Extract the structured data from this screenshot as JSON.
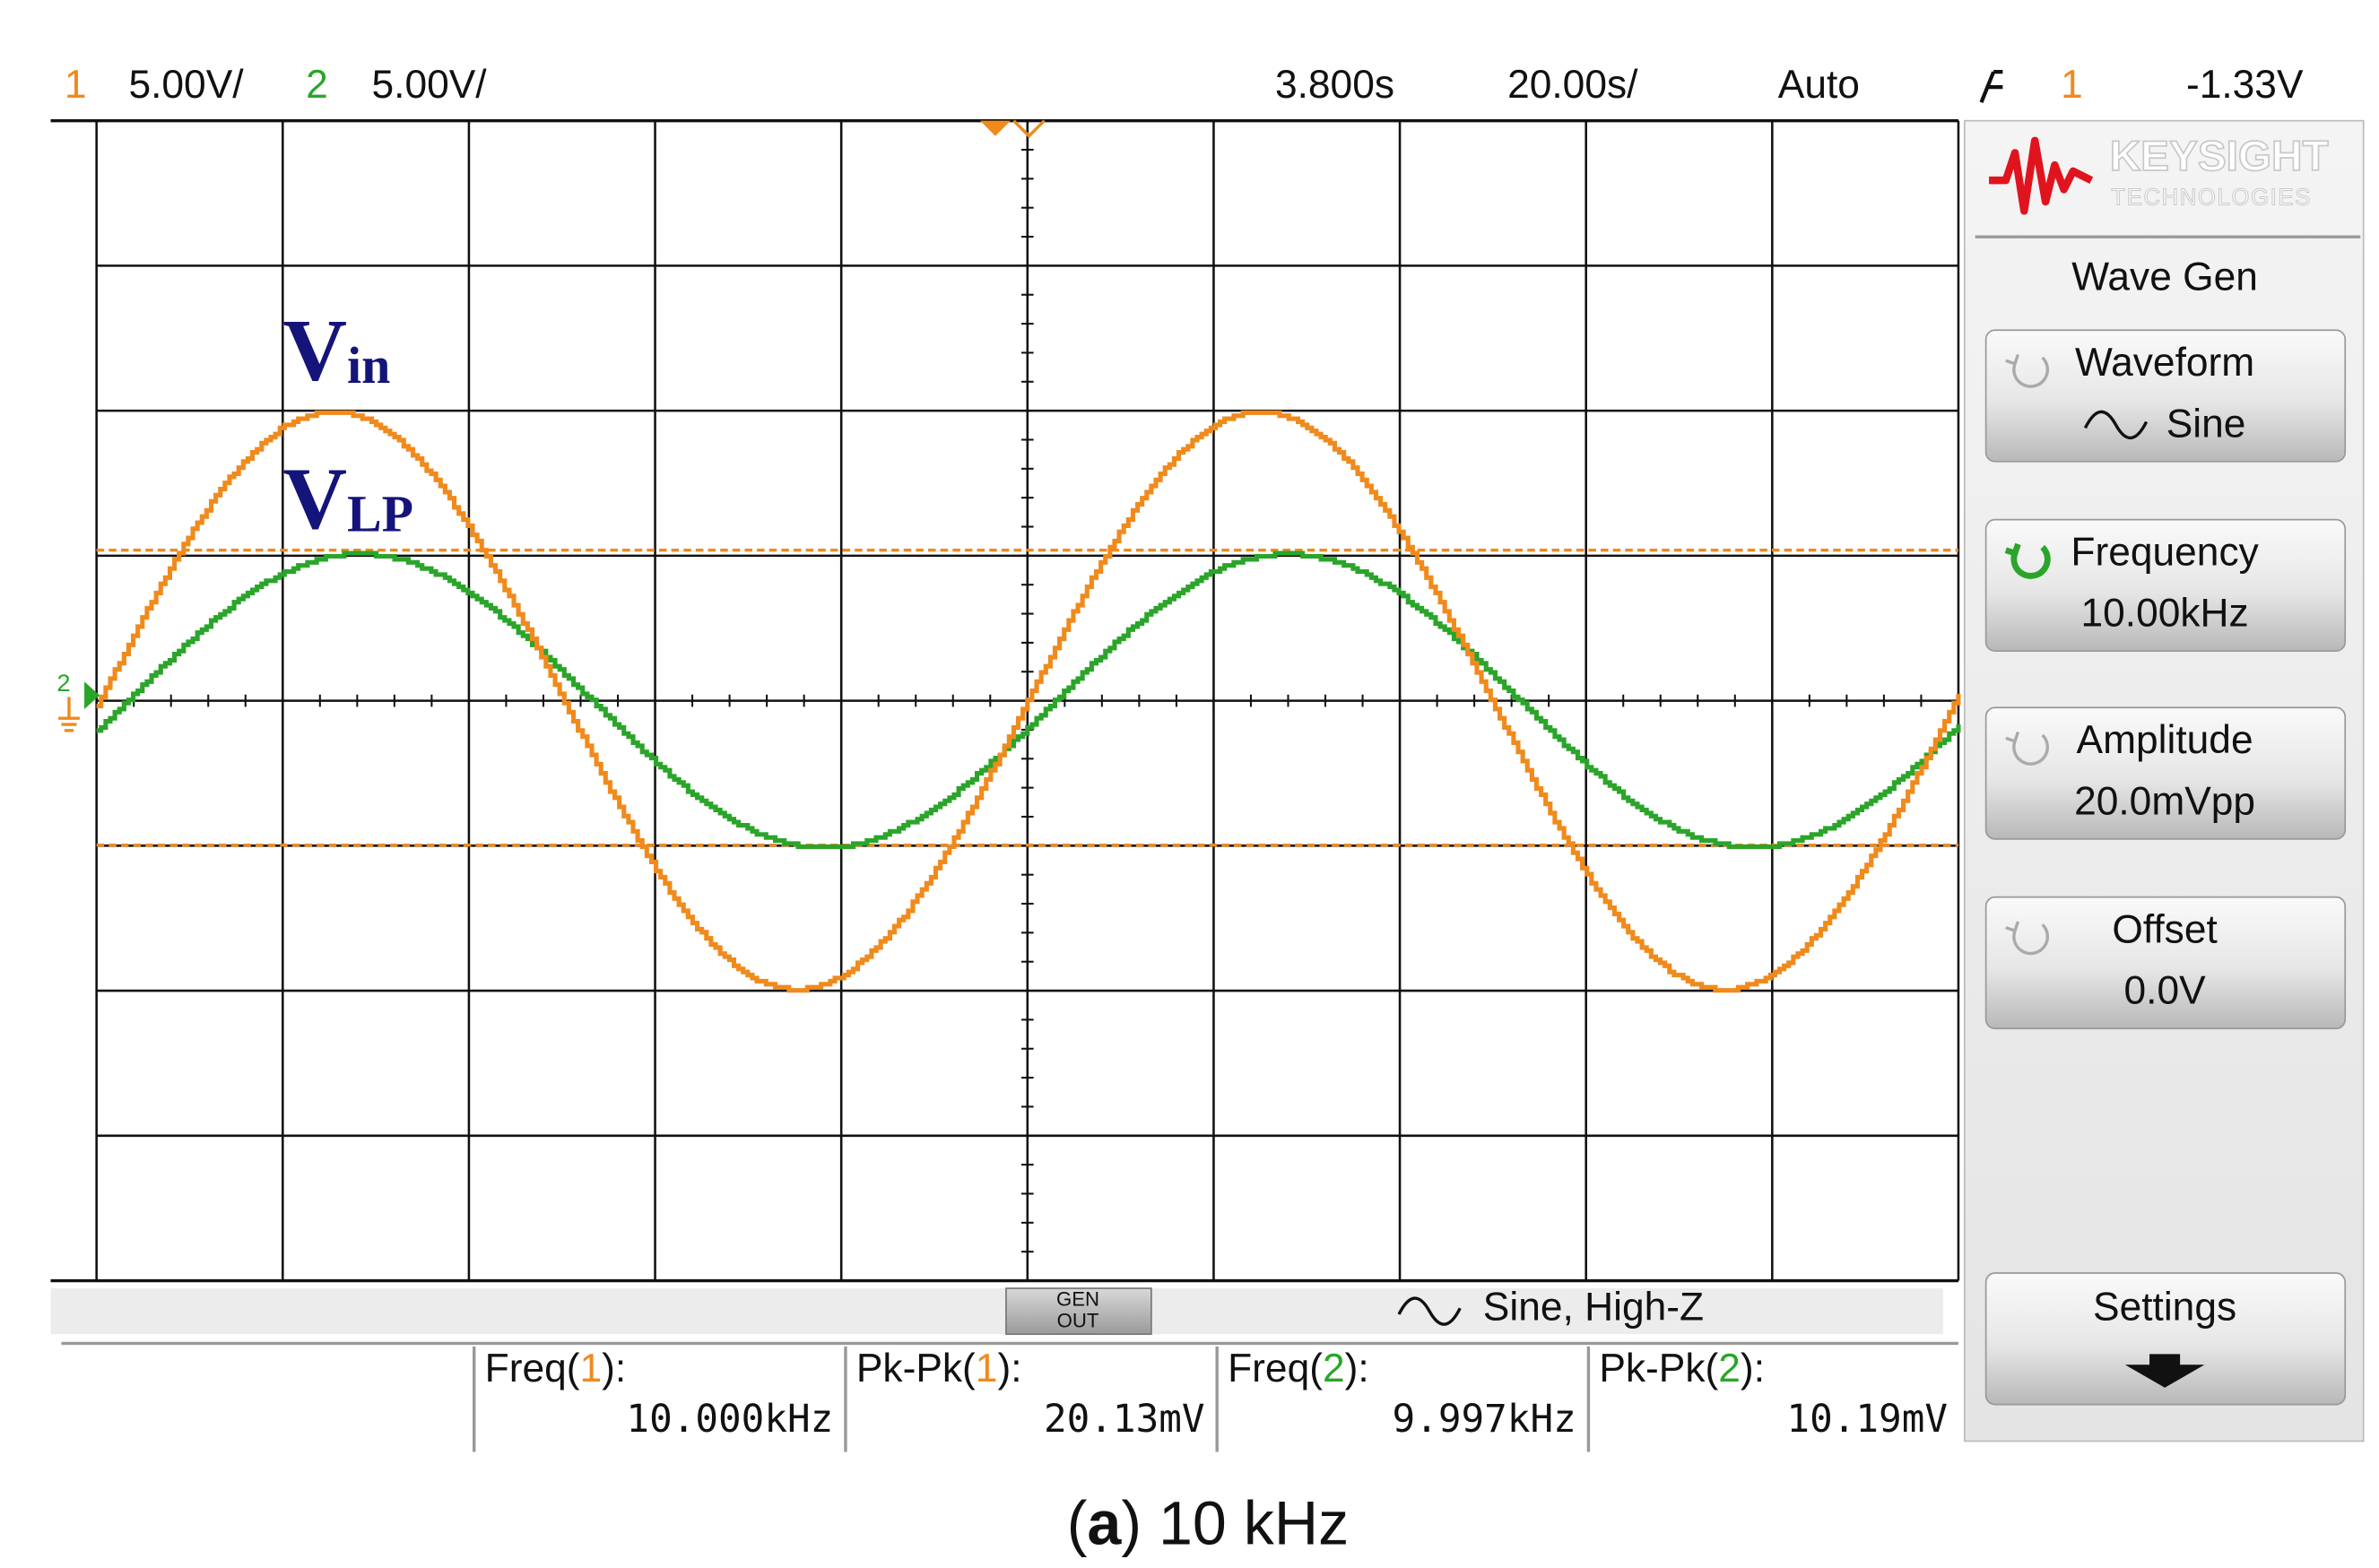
{
  "header": {
    "ch1_label": "1",
    "ch1_scale": "5.00V/",
    "ch2_label": "2",
    "ch2_scale": "5.00V/",
    "time_delay": "3.800s",
    "time_scale": "20.00s/",
    "trigger_mode": "Auto",
    "trigger_source": "1",
    "trigger_level": "-1.33V"
  },
  "ground_marker": "2",
  "annotations": {
    "vin": {
      "main": "V",
      "sub": "in"
    },
    "vlp": {
      "main": "V",
      "sub": "LP"
    }
  },
  "panel": {
    "brand": "KEYSIGHT",
    "brand_sub": "TECHNOLOGIES",
    "title": "Wave Gen",
    "buttons": [
      {
        "label": "Waveform",
        "value": "Sine"
      },
      {
        "label": "Frequency",
        "value": "10.00kHz"
      },
      {
        "label": "Amplitude",
        "value": "20.0mVpp"
      },
      {
        "label": "Offset",
        "value": "0.0V"
      }
    ],
    "settings": "Settings"
  },
  "gen_out": {
    "button_top": "GEN",
    "button_bottom": "OUT",
    "status": "Sine, High-Z"
  },
  "measurements": [
    {
      "label": "Freq(",
      "channel": "1",
      "suffix": "):",
      "value": "10.000kHz"
    },
    {
      "label": "Pk-Pk(",
      "channel": "1",
      "suffix": "):",
      "value": "20.13mV"
    },
    {
      "label": "Freq(",
      "channel": "2",
      "suffix": "):",
      "value": "9.997kHz"
    },
    {
      "label": "Pk-Pk(",
      "channel": "2",
      "suffix": "):",
      "value": "10.19mV"
    }
  ],
  "caption": {
    "open": "(",
    "label": "a",
    "rest": ") 10 kHz"
  }
}
